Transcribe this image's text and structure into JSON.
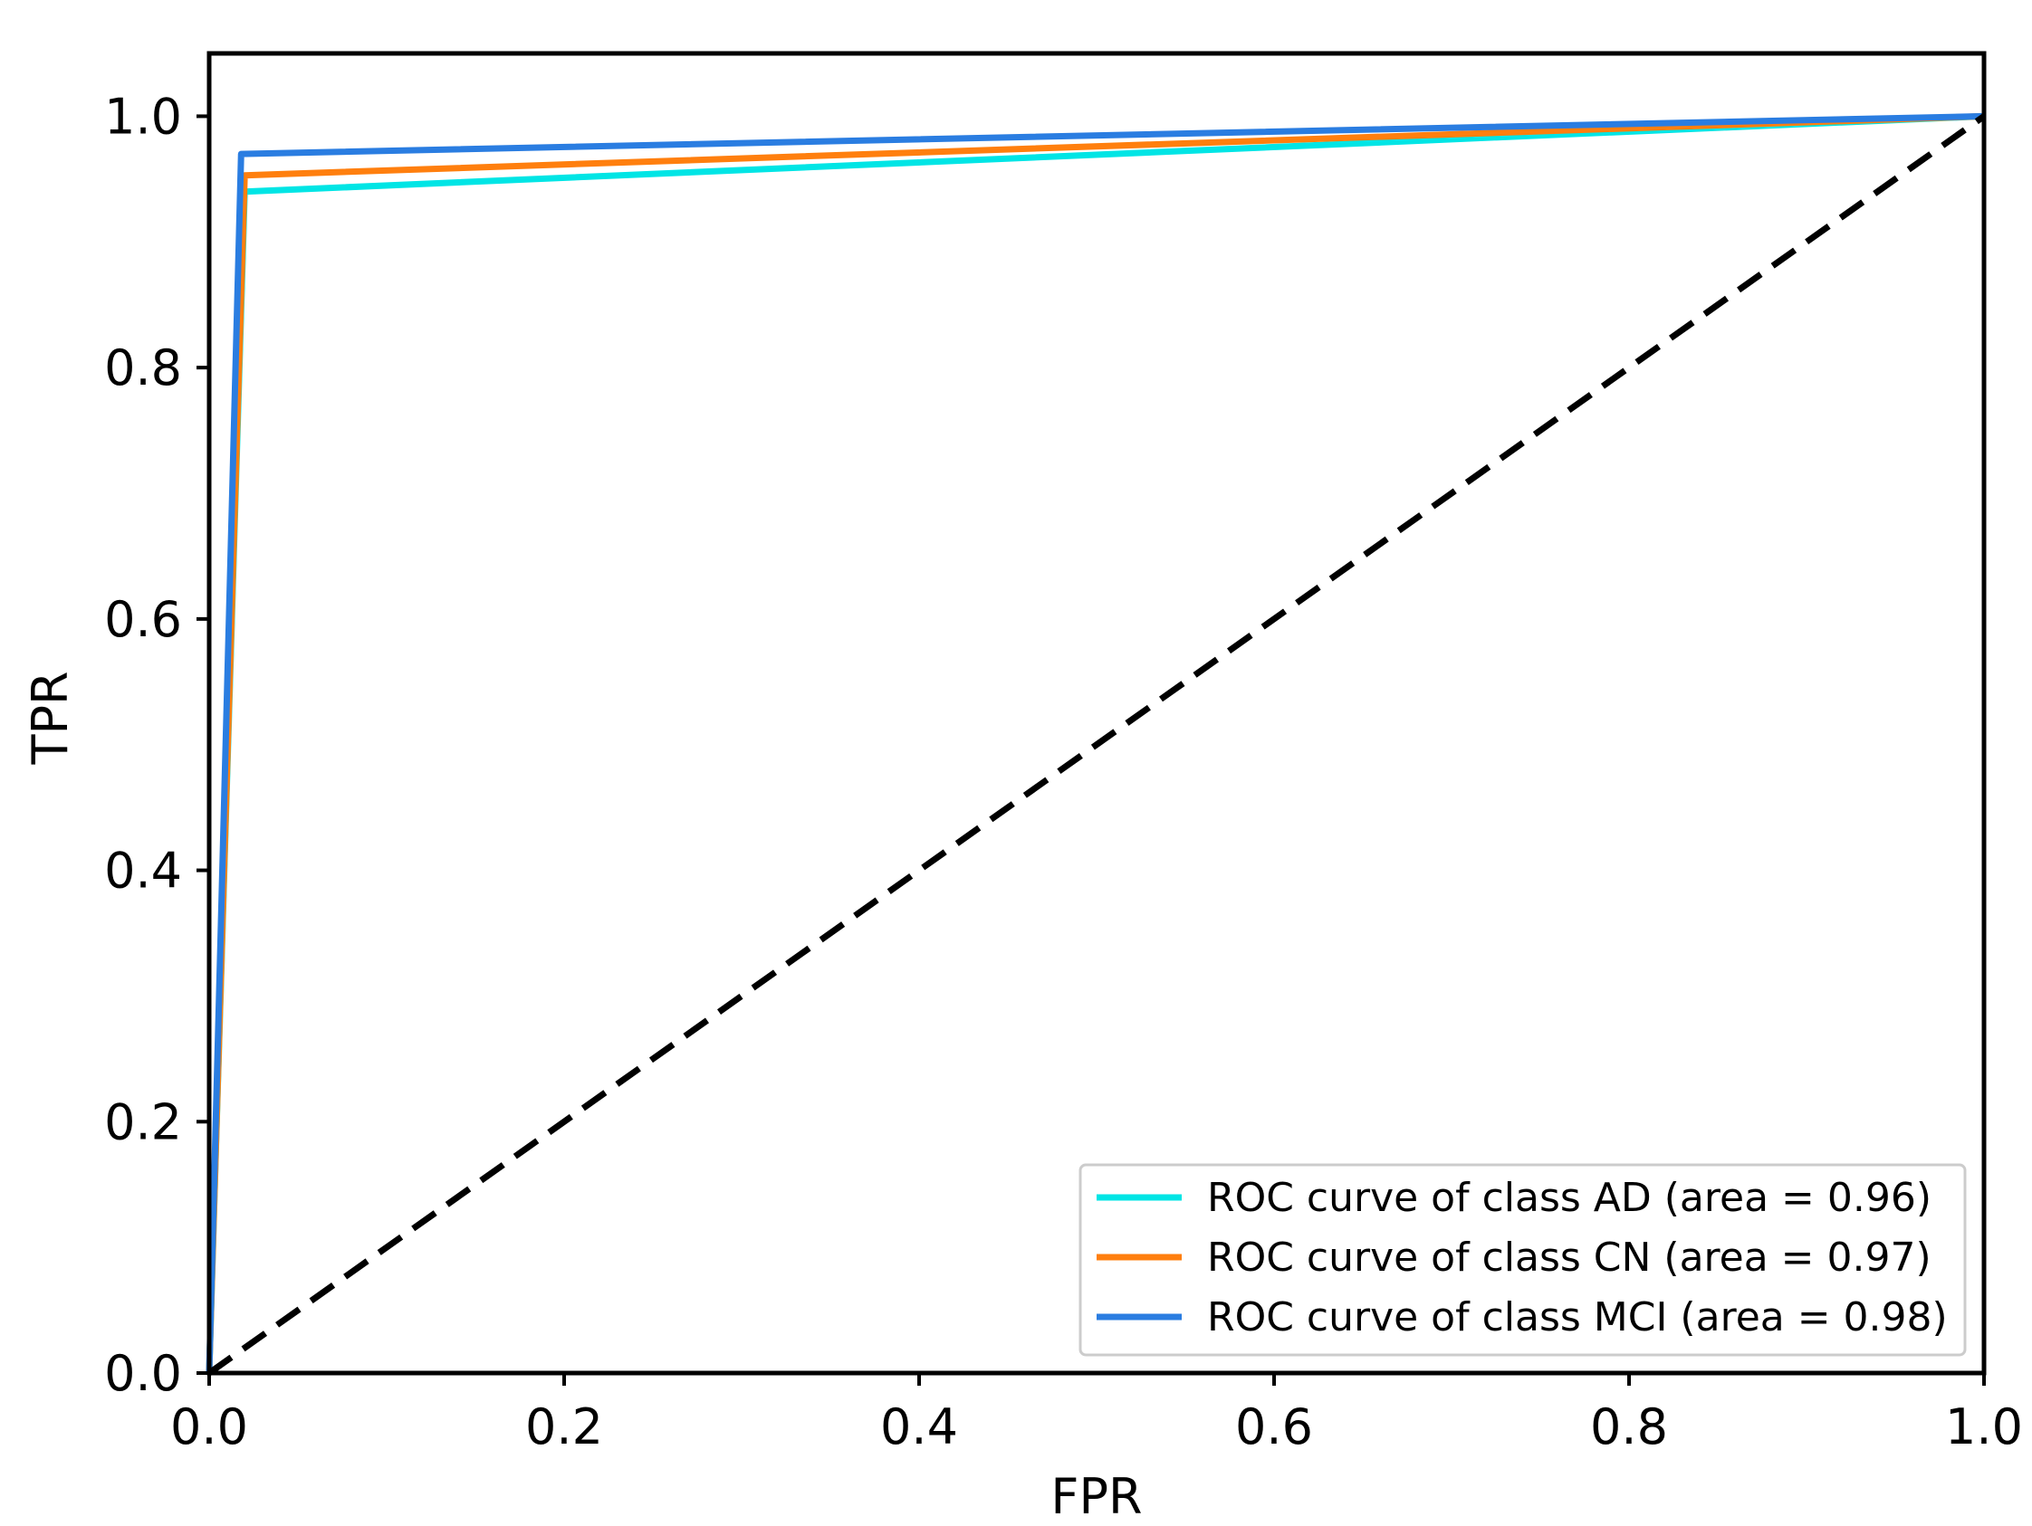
{
  "chart_data": {
    "type": "line",
    "title": "",
    "xlabel": "FPR",
    "ylabel": "TPR",
    "xlim": [
      0.0,
      1.0
    ],
    "ylim": [
      0.0,
      1.05
    ],
    "xticks": [
      "0.0",
      "0.2",
      "0.4",
      "0.6",
      "0.8",
      "1.0"
    ],
    "yticks": [
      "0.0",
      "0.2",
      "0.4",
      "0.6",
      "0.8",
      "1.0"
    ],
    "grid": false,
    "legend_position": "bottom-right",
    "series": [
      {
        "name": "ROC curve of class AD (area = 0.96)",
        "color": "#00e5e5",
        "x": [
          0.0,
          0.02,
          1.0
        ],
        "y": [
          0.0,
          0.94,
          1.0
        ]
      },
      {
        "name": "ROC curve of class CN (area = 0.97)",
        "color": "#ff7f0e",
        "x": [
          0.0,
          0.02,
          1.0
        ],
        "y": [
          0.0,
          0.953,
          1.0
        ]
      },
      {
        "name": "ROC curve of class MCI (area = 0.98)",
        "color": "#2a7de1",
        "x": [
          0.0,
          0.018,
          1.0
        ],
        "y": [
          0.0,
          0.97,
          1.0
        ]
      }
    ],
    "reference_line": {
      "x": [
        0.0,
        1.0
      ],
      "y": [
        0.0,
        1.0
      ],
      "color": "#000000",
      "style": "dashed"
    }
  }
}
